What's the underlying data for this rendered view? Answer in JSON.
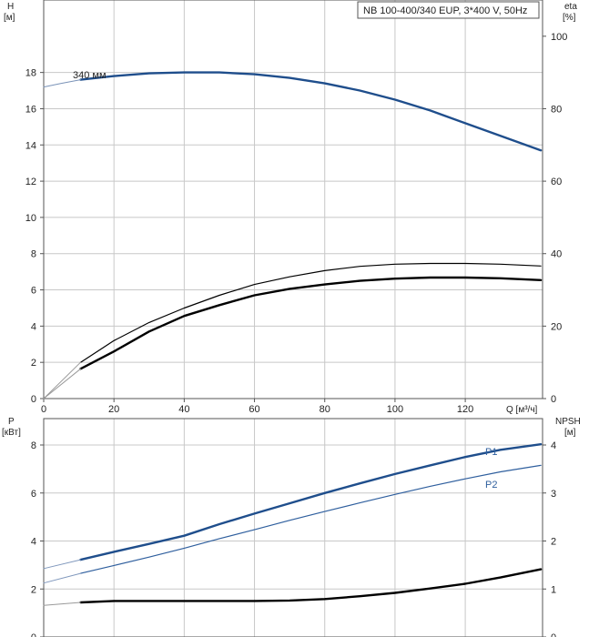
{
  "chart_data": [
    {
      "type": "line",
      "name": "head-efficiency",
      "legend": "NB 100-400/340 EUP, 3*400 V, 50Hz",
      "x_axis": {
        "label": "Q [м³/ч]",
        "range": [
          0,
          142
        ],
        "ticks": [
          0,
          20,
          40,
          60,
          80,
          100,
          120
        ]
      },
      "y_left": {
        "label_line1": "H",
        "label_line2": "[м]",
        "range": [
          0,
          22
        ],
        "ticks": [
          0,
          2,
          4,
          6,
          8,
          10,
          12,
          14,
          16,
          18
        ]
      },
      "y_right": {
        "label_line1": "eta",
        "label_line2": "[%]",
        "range": [
          0,
          110
        ],
        "ticks": [
          0,
          20,
          40,
          60,
          80,
          100
        ]
      },
      "series": [
        {
          "name": "H 340 мм",
          "label": "340 мм",
          "axis": "left",
          "color": "#1f4e8c",
          "width": 2.4,
          "x": [
            10.5,
            20,
            30,
            40,
            50,
            60,
            70,
            80,
            90,
            100,
            110,
            120,
            130,
            141.5
          ],
          "y": [
            17.6,
            17.8,
            17.95,
            18.0,
            18.0,
            17.9,
            17.7,
            17.4,
            17.0,
            16.5,
            15.9,
            15.2,
            14.5,
            13.7
          ]
        },
        {
          "name": "H extension",
          "axis": "left",
          "color": "#7a93b8",
          "width": 1,
          "x": [
            0,
            5,
            10.5
          ],
          "y": [
            17.2,
            17.4,
            17.6
          ]
        },
        {
          "name": "eta total",
          "axis": "right",
          "color": "#000000",
          "width": 1.2,
          "x": [
            10.5,
            20,
            30,
            40,
            50,
            60,
            70,
            80,
            90,
            100,
            110,
            120,
            130,
            141.5
          ],
          "y": [
            10,
            16,
            21,
            25,
            28.5,
            31.5,
            33.6,
            35.3,
            36.5,
            37.1,
            37.3,
            37.3,
            37.1,
            36.6
          ]
        },
        {
          "name": "eta pump",
          "axis": "right",
          "color": "#000000",
          "width": 2.4,
          "x": [
            10.5,
            20,
            30,
            40,
            50,
            60,
            70,
            80,
            90,
            100,
            110,
            120,
            130,
            141.5
          ],
          "y": [
            8.2,
            13,
            18.5,
            22.8,
            25.8,
            28.5,
            30.3,
            31.5,
            32.5,
            33.1,
            33.4,
            33.4,
            33.2,
            32.7
          ]
        },
        {
          "name": "eta extension 1",
          "axis": "right",
          "color": "#9a9a9a",
          "width": 1,
          "x": [
            0,
            10.5
          ],
          "y": [
            0,
            10
          ]
        },
        {
          "name": "eta extension 2",
          "axis": "right",
          "color": "#9a9a9a",
          "width": 1,
          "x": [
            0,
            10.5
          ],
          "y": [
            0,
            8.2
          ]
        }
      ]
    },
    {
      "type": "line",
      "name": "power-npsh",
      "x_axis": {
        "range": [
          0,
          142
        ],
        "ticks": []
      },
      "y_left": {
        "label_line1": "P",
        "label_line2": "[кВт]",
        "range": [
          0,
          9.1
        ],
        "ticks": [
          0,
          2,
          4,
          6,
          8
        ]
      },
      "y_right": {
        "label_line1": "NPSH",
        "label_line2": "[м]",
        "range": [
          0,
          4.55
        ],
        "ticks": [
          0,
          1,
          2,
          3,
          4
        ]
      },
      "series": [
        {
          "name": "P1",
          "label": "P1",
          "axis": "left",
          "color": "#1f4e8c",
          "width": 2.4,
          "x": [
            10.5,
            20,
            30,
            40,
            50,
            60,
            70,
            80,
            90,
            100,
            110,
            120,
            130,
            141.5
          ],
          "y": [
            3.22,
            3.55,
            3.88,
            4.22,
            4.7,
            5.14,
            5.57,
            6.0,
            6.4,
            6.79,
            7.15,
            7.5,
            7.8,
            8.03
          ]
        },
        {
          "name": "P2",
          "label": "P2",
          "axis": "left",
          "color": "#2f5f9e",
          "width": 1.2,
          "x": [
            10.5,
            20,
            30,
            40,
            50,
            60,
            70,
            80,
            90,
            100,
            110,
            120,
            130,
            141.5
          ],
          "y": [
            2.65,
            2.98,
            3.33,
            3.7,
            4.1,
            4.47,
            4.86,
            5.23,
            5.59,
            5.94,
            6.28,
            6.59,
            6.88,
            7.15
          ]
        },
        {
          "name": "P1 extension",
          "axis": "left",
          "color": "#8098bd",
          "width": 1,
          "x": [
            0,
            10.5
          ],
          "y": [
            2.85,
            3.22
          ]
        },
        {
          "name": "P2 extension",
          "axis": "left",
          "color": "#8098bd",
          "width": 1,
          "x": [
            0,
            10.5
          ],
          "y": [
            2.25,
            2.65
          ]
        },
        {
          "name": "NPSH",
          "axis": "right",
          "color": "#000000",
          "width": 2.4,
          "x": [
            10.5,
            20,
            30,
            40,
            50,
            60,
            70,
            80,
            90,
            100,
            110,
            120,
            130,
            141.5
          ],
          "y": [
            0.72,
            0.75,
            0.75,
            0.75,
            0.75,
            0.75,
            0.76,
            0.79,
            0.85,
            0.92,
            1.01,
            1.11,
            1.24,
            1.41
          ]
        },
        {
          "name": "NPSH extension",
          "axis": "right",
          "color": "#9a9a9a",
          "width": 1,
          "x": [
            0,
            10.5
          ],
          "y": [
            0.66,
            0.72
          ]
        }
      ]
    }
  ]
}
